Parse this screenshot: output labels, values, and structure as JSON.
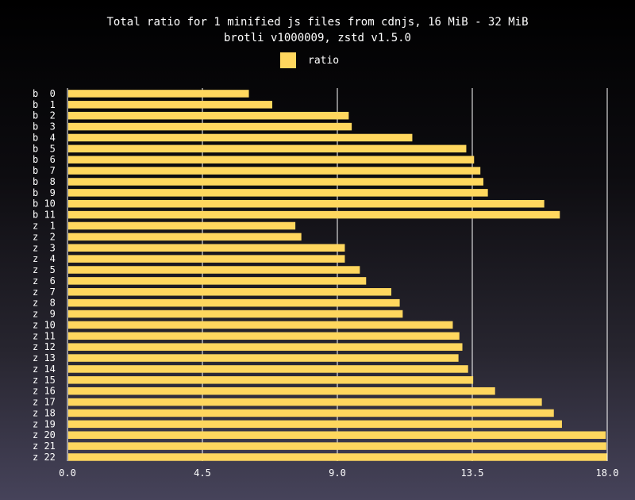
{
  "chart_data": {
    "type": "bar",
    "orientation": "horizontal",
    "title": "Total ratio for 1 minified js files from cdnjs, 16 MiB - 32 MiB",
    "subtitle": "brotli v1000009, zstd v1.5.0",
    "legend": {
      "placement": "top-center",
      "entries": [
        "ratio"
      ]
    },
    "series": [
      {
        "name": "ratio",
        "color": "#ffd75e",
        "values": [
          6.05,
          6.83,
          9.38,
          9.48,
          11.5,
          13.3,
          13.56,
          13.77,
          13.87,
          14.02,
          15.9,
          16.42,
          7.6,
          7.8,
          9.25,
          9.25,
          9.75,
          9.96,
          10.8,
          11.08,
          11.18,
          12.85,
          13.07,
          13.17,
          13.04,
          13.36,
          13.53,
          14.26,
          15.82,
          16.22,
          16.49,
          17.95,
          17.97,
          17.99
        ]
      }
    ],
    "categories": [
      "b  0",
      "b  1",
      "b  2",
      "b  3",
      "b  4",
      "b  5",
      "b  6",
      "b  7",
      "b  8",
      "b  9",
      "b 10",
      "b 11",
      "z  1",
      "z  2",
      "z  3",
      "z  4",
      "z  5",
      "z  6",
      "z  7",
      "z  8",
      "z  9",
      "z 10",
      "z 11",
      "z 12",
      "z 13",
      "z 14",
      "z 15",
      "z 16",
      "z 17",
      "z 18",
      "z 19",
      "z 20",
      "z 21",
      "z 22"
    ],
    "xlim": [
      0,
      18
    ],
    "xticks": [
      "0.0",
      "4.5",
      "9.0",
      "13.5",
      "18.0"
    ],
    "xtick_values": [
      0,
      4.5,
      9,
      13.5,
      18
    ],
    "grid": true,
    "colors": {
      "bar": "#ffd75e",
      "grid": "#ffffff",
      "text": "#ffffff"
    }
  }
}
